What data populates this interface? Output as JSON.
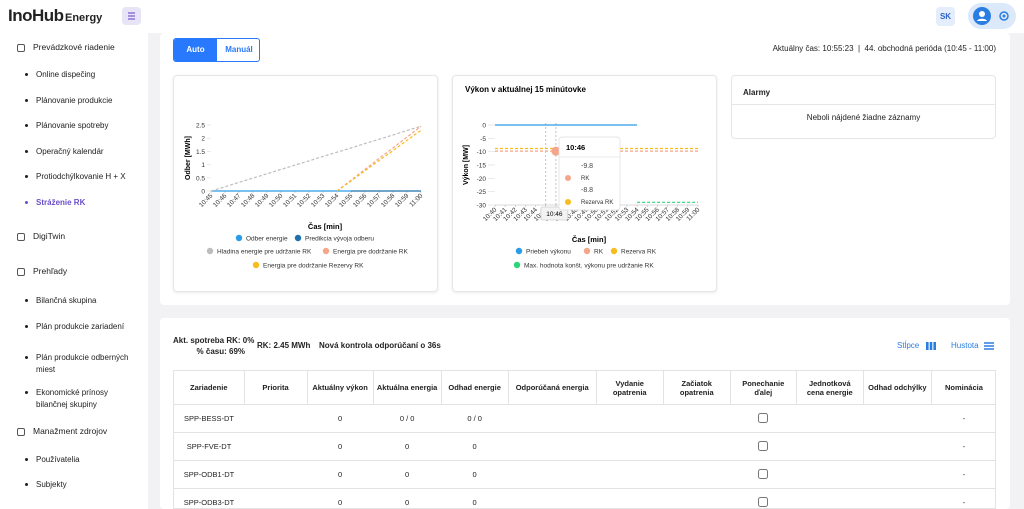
{
  "header": {
    "logo": "InoHub",
    "logo_suffix": "Energy",
    "language": "SK"
  },
  "sidebar": [
    {
      "label": "Prevádzkové riadenie",
      "items": [
        "Online dispečing",
        "Plánovanie produkcie",
        "Plánovanie spotreby",
        "Operačný kalendár",
        "Protiodchýlkovanie H + X",
        "Stráženie RK"
      ],
      "active_index": 5
    },
    {
      "label": "DigiTwin"
    },
    {
      "label": "Prehľady",
      "items": [
        "Bilančná skupina",
        "Plán produkcie zariadení",
        "Plán produkcie odberných miest",
        "Ekonomické prínosy bilančnej skupiny"
      ]
    },
    {
      "label": "Manažment zdrojov",
      "items": [
        "Používatelia",
        "Subjekty"
      ]
    }
  ],
  "mode_buttons": {
    "options": [
      "Auto",
      "Manuál"
    ],
    "selected_index": 0
  },
  "status": "Aktuálny čas: 10:55:23  |  44. obchodná perióda (10:45 - 11:00)",
  "alarms": {
    "title": "Alarmy",
    "empty_message": "Neboli nájdené žiadne záznamy"
  },
  "summary": {
    "consumption": "Akt. spotreba RK: 0%",
    "time_share": "% času: 69%",
    "rk": "RK: 2.45 MWh",
    "next_check": "Nová kontrola odporúčaní o 36s",
    "columns_button": "Stĺpce",
    "density_button": "Hustota"
  },
  "table": {
    "headers": [
      "Zariadenie",
      "Priorita",
      "Aktuálny výkon",
      "Aktuálna energia",
      "Odhad energie",
      "Odporúčaná energia",
      "Vydanie opatrenia",
      "Začiatok opatrenia",
      "Ponechanie ďalej",
      "Jednotková cena energie",
      "Odhad odchýlky",
      "Nominácia"
    ],
    "rows": [
      [
        "SPP-BESS-DT",
        null,
        0,
        "0 / 0",
        "0 / 0",
        null,
        null,
        null,
        {
          "checked": false
        },
        null,
        null,
        "-"
      ],
      [
        "SPP-FVE-DT",
        null,
        0,
        0,
        0,
        null,
        null,
        null,
        {
          "checked": false
        },
        null,
        null,
        "-"
      ],
      [
        "SPP-ODB1-DT",
        null,
        0,
        0,
        0,
        null,
        null,
        null,
        {
          "checked": false
        },
        null,
        null,
        "-"
      ],
      [
        "SPP-ODB3-DT",
        null,
        0,
        0,
        0,
        null,
        null,
        null,
        {
          "checked": false
        },
        null,
        null,
        "-"
      ]
    ]
  },
  "chart_data": [
    {
      "type": "line",
      "y_label": "Odber [MWh]",
      "x_label": "Čas [min]",
      "categories": [
        "10:45",
        "10:46",
        "10:47",
        "10:48",
        "10:49",
        "10:50",
        "10:51",
        "10:52",
        "10:53",
        "10:54",
        "10:55",
        "10:56",
        "10:57",
        "10:58",
        "10:59",
        "11:00"
      ],
      "ylim": [
        0,
        2.5
      ],
      "yticks": [
        0,
        0.5,
        1,
        1.5,
        2,
        2.5
      ],
      "series": [
        {
          "name": "Odber energie",
          "color": "#2a9be8",
          "values": [
            0,
            0,
            0,
            0,
            0,
            0,
            0,
            0,
            0,
            0,
            0,
            null,
            null,
            null,
            null,
            null
          ]
        },
        {
          "name": "Predikcia vývoja odberu",
          "color": "#1d6fae",
          "values": [
            null,
            null,
            null,
            null,
            null,
            null,
            null,
            null,
            null,
            null,
            0,
            0,
            0,
            0,
            0,
            0
          ]
        },
        {
          "name": "Hladina energie pre udržanie RK",
          "color": "#bdbdbd",
          "style": "dashed",
          "values": [
            0,
            0.16,
            0.33,
            0.49,
            0.65,
            0.82,
            0.98,
            1.14,
            1.31,
            1.47,
            1.63,
            1.8,
            1.96,
            2.12,
            2.29,
            2.45
          ]
        },
        {
          "name": "Energia pre dodržanie RK",
          "color": "#f4a58a",
          "style": "dashed",
          "values": [
            null,
            null,
            null,
            null,
            null,
            null,
            null,
            null,
            null,
            0,
            0.41,
            0.82,
            1.23,
            1.63,
            2.04,
            2.45
          ]
        },
        {
          "name": "Energia pre dodržanie Rezervy RK",
          "color": "#f7bd1e",
          "style": "dashed",
          "values": [
            null,
            null,
            null,
            null,
            null,
            null,
            null,
            null,
            null,
            0,
            0.38,
            0.77,
            1.15,
            1.53,
            1.92,
            2.3
          ]
        }
      ]
    },
    {
      "type": "line",
      "title": "Výkon v aktuálnej 15 minútovke",
      "y_label": "Výkon [MW]",
      "x_label": "Čas [min]",
      "categories": [
        "10:40",
        "10:41",
        "10:42",
        "10:43",
        "10:44",
        "10:45",
        "10:46",
        "10:47",
        "10:48",
        "10:49",
        "10:50",
        "10:51",
        "10:52",
        "10:53",
        "10:54",
        "10:55",
        "10:56",
        "10:57",
        "10:58",
        "10:59",
        "11:00"
      ],
      "ylim": [
        -30,
        0
      ],
      "yticks": [
        -30,
        -25,
        -20,
        -15,
        -10,
        -5,
        0
      ],
      "series": [
        {
          "name": "Priebeh výkonu",
          "color": "#2a9be8",
          "values": [
            0,
            0,
            0,
            0,
            0,
            0,
            0,
            0,
            0,
            0,
            0,
            0,
            0,
            0,
            0,
            null,
            null,
            null,
            null,
            null,
            null
          ]
        },
        {
          "name": "RK",
          "color": "#f4a58a",
          "style": "dashed",
          "values": [
            -9.8,
            -9.8,
            -9.8,
            -9.8,
            -9.8,
            -9.8,
            -9.8,
            -9.8,
            -9.8,
            -9.8,
            -9.8,
            -9.8,
            -9.8,
            -9.8,
            -9.8,
            -9.8,
            -9.8,
            -9.8,
            -9.8,
            -9.8,
            -9.8
          ]
        },
        {
          "name": "Rezerva RK",
          "color": "#f7bd1e",
          "style": "dashed",
          "values": [
            -8.8,
            -8.8,
            -8.8,
            -8.8,
            -8.8,
            -8.8,
            -8.8,
            -8.8,
            -8.8,
            -8.8,
            -8.8,
            -8.8,
            -8.8,
            -8.8,
            -8.8,
            -8.8,
            -8.8,
            -8.8,
            -8.8,
            -8.8,
            -8.8
          ]
        },
        {
          "name": "Max. hodnota konšt. výkonu pre udržanie RK",
          "color": "#2ed47a",
          "style": "dashed",
          "values": [
            null,
            null,
            null,
            null,
            null,
            null,
            null,
            null,
            null,
            null,
            null,
            null,
            null,
            null,
            -29,
            -29,
            -29,
            -29,
            -29,
            -29,
            -29
          ]
        }
      ],
      "hover_label": "10:46",
      "tooltip": {
        "title": "10:46",
        "items": [
          {
            "value": -9.8,
            "name": "RK",
            "color": "#f4a58a"
          },
          {
            "value": -8.8,
            "name": "Rezerva RK",
            "color": "#f7bd1e"
          }
        ]
      }
    }
  ]
}
